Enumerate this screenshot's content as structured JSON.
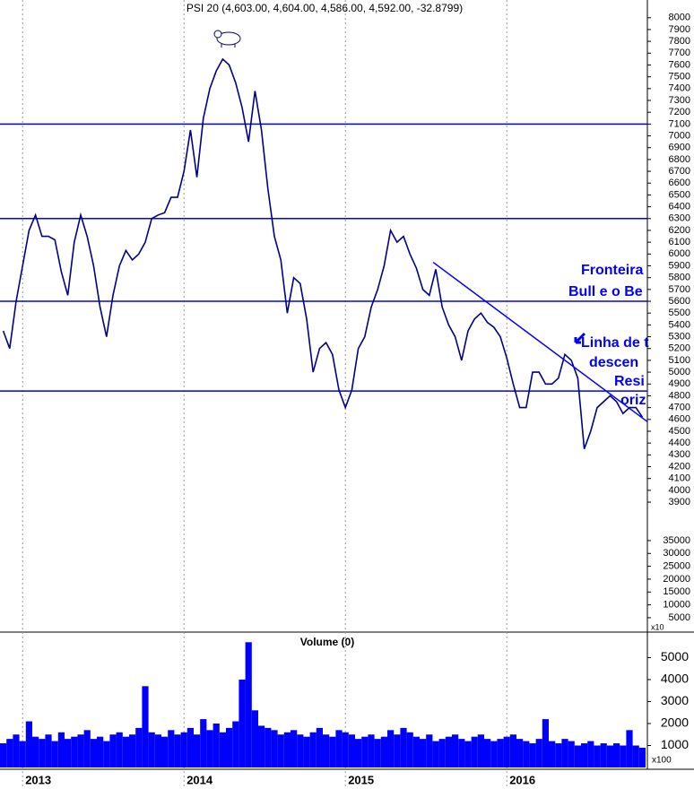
{
  "chart_data": [
    {
      "type": "line",
      "title": "PSI 20 (4,603.00, 4,604.00, 4,586.00, 4,592.00, -32.8799)",
      "series": [
        {
          "name": "PSI 20",
          "color": "#00008b",
          "values": [
            5350,
            5200,
            5600,
            5900,
            6200,
            6330,
            6150,
            6150,
            6120,
            5850,
            5650,
            6100,
            6330,
            6150,
            5900,
            5550,
            5300,
            5650,
            5900,
            6030,
            5950,
            6000,
            6100,
            6300,
            6330,
            6350,
            6480,
            6480,
            6700,
            7050,
            6650,
            7150,
            7400,
            7550,
            7650,
            7600,
            7450,
            7240,
            6950,
            7380,
            7050,
            6550,
            6150,
            5950,
            5500,
            5800,
            5750,
            5450,
            5000,
            5200,
            5250,
            5150,
            4850,
            4700,
            4850,
            5200,
            5300,
            5550,
            5700,
            5900,
            6200,
            6100,
            6150,
            6000,
            5880,
            5700,
            5650,
            5870,
            5550,
            5400,
            5300,
            5100,
            5350,
            5450,
            5500,
            5420,
            5380,
            5300,
            5120,
            4900,
            4700,
            4700,
            5000,
            5000,
            4900,
            4900,
            4950,
            5150,
            5100,
            4950,
            4350,
            4500,
            4700,
            4750,
            4800,
            4750,
            4650,
            4700,
            4700,
            4620
          ]
        }
      ],
      "ylim": [
        2800,
        8150
      ],
      "yticks": [
        3900,
        4000,
        4100,
        4200,
        4300,
        4400,
        4500,
        4600,
        4700,
        4800,
        4900,
        5000,
        5100,
        5200,
        5300,
        5400,
        5500,
        5600,
        5700,
        5800,
        5900,
        6000,
        6100,
        6200,
        6300,
        6400,
        6500,
        6600,
        6700,
        6800,
        6900,
        7000,
        7100,
        7200,
        7300,
        7400,
        7500,
        7600,
        7700,
        7800,
        7900,
        8000
      ],
      "y2lim": [
        -600,
        245300
      ],
      "y2ticks": [
        5000,
        10000,
        15000,
        20000,
        25000,
        30000,
        35000
      ],
      "y2_multiplier": "x10",
      "hlines": {
        "color": "#0000ff",
        "values": [
          7100,
          6300,
          5600,
          4840
        ]
      },
      "trendline": {
        "color": "#0000ff",
        "x": [
          66.6,
          99.8
        ],
        "y": [
          5930,
          4580
        ]
      },
      "annotations": [
        "Fronteira",
        "Bull e o Be",
        "Linha de t",
        "descen",
        "Resi",
        "oriz"
      ]
    },
    {
      "type": "bar",
      "title": "Volume (0)",
      "color": "#0000ff",
      "categories": [
        null,
        null,
        null,
        "2013",
        null,
        null,
        null,
        null,
        null,
        null,
        null,
        null,
        null,
        null,
        null,
        null,
        null,
        null,
        null,
        null,
        null,
        null,
        null,
        null,
        null,
        null,
        null,
        null,
        "2014",
        null,
        null,
        null,
        null,
        null,
        null,
        null,
        null,
        null,
        null,
        null,
        null,
        null,
        null,
        null,
        null,
        null,
        null,
        null,
        null,
        null,
        null,
        null,
        null,
        "2015",
        null,
        null,
        null,
        null,
        null,
        null,
        null,
        null,
        null,
        null,
        null,
        null,
        null,
        null,
        null,
        null,
        null,
        null,
        null,
        null,
        null,
        null,
        null,
        null,
        "2016",
        null,
        null,
        null,
        null,
        null,
        null,
        null,
        null,
        null,
        null,
        null,
        null,
        null,
        null,
        null,
        null,
        null,
        null,
        null,
        null,
        null
      ],
      "values": [
        1100,
        1300,
        1500,
        1200,
        2100,
        1400,
        1300,
        1500,
        1200,
        1600,
        1300,
        1400,
        1500,
        1700,
        1300,
        1400,
        1200,
        1500,
        1600,
        1400,
        1500,
        1800,
        3700,
        1600,
        1500,
        1400,
        1700,
        1500,
        1600,
        1800,
        1500,
        2200,
        1700,
        2000,
        1600,
        1800,
        2100,
        4000,
        5700,
        2600,
        1900,
        1800,
        1700,
        1500,
        1600,
        1700,
        1500,
        1400,
        1600,
        1800,
        1500,
        1400,
        1700,
        1600,
        1500,
        1300,
        1400,
        1500,
        1300,
        1400,
        1700,
        1500,
        1800,
        1600,
        1400,
        1300,
        1500,
        1200,
        1300,
        1400,
        1500,
        1300,
        1200,
        1400,
        1500,
        1300,
        1200,
        1300,
        1400,
        1500,
        1300,
        1200,
        1100,
        1300,
        2200,
        1200,
        1100,
        1300,
        1200,
        1000,
        1100,
        1200,
        1000,
        1100,
        1000,
        1100,
        1000,
        1700,
        1000,
        900
      ],
      "ylim": [
        0,
        6120
      ],
      "yticks": [
        1000,
        2000,
        3000,
        4000,
        5000
      ],
      "y_multiplier": "x100"
    }
  ]
}
